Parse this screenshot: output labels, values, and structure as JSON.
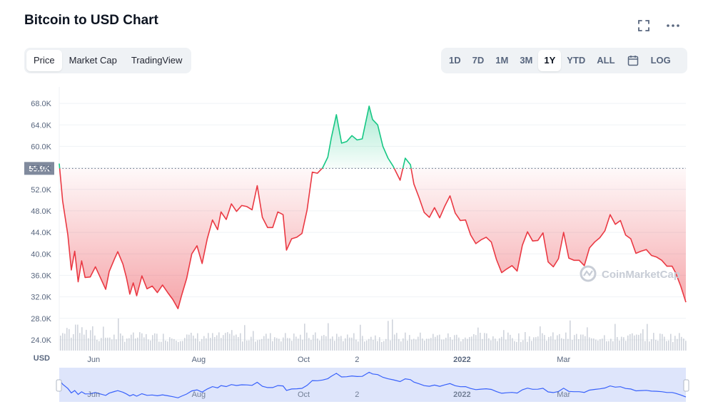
{
  "header": {
    "title": "Bitcoin to USD Chart",
    "expand_icon": "fullscreen-icon",
    "more_icon": "more-horizontal-icon"
  },
  "view_tabs": [
    {
      "label": "Price",
      "active": true
    },
    {
      "label": "Market Cap",
      "active": false
    },
    {
      "label": "TradingView",
      "active": false
    }
  ],
  "range_tabs": [
    {
      "label": "1D",
      "active": false
    },
    {
      "label": "7D",
      "active": false
    },
    {
      "label": "1M",
      "active": false
    },
    {
      "label": "3M",
      "active": false
    },
    {
      "label": "1Y",
      "active": true
    },
    {
      "label": "YTD",
      "active": false
    },
    {
      "label": "ALL",
      "active": false
    }
  ],
  "calendar_icon": "calendar-icon",
  "log_label": "LOG",
  "watermark": "CoinMarketCap",
  "colors": {
    "up": "#16c784",
    "down": "#ea3943",
    "navigator": "#3861fb",
    "grid": "#eff2f5",
    "axis_text": "#58667e"
  },
  "chart_data": {
    "type": "line",
    "title": "Bitcoin to USD Chart",
    "ylabel": "USD",
    "ylim": [
      22000,
      70000
    ],
    "yticks": [
      24000,
      28000,
      32000,
      36000,
      40000,
      44000,
      48000,
      52000,
      56000,
      60000,
      64000,
      68000
    ],
    "ytick_labels": [
      "24.0K",
      "28.0K",
      "32.0K",
      "36.0K",
      "40.0K",
      "44.0K",
      "48.0K",
      "52.0K",
      "56.0K",
      "60.0K",
      "64.0K",
      "68.0K"
    ],
    "xtick_labels": [
      {
        "label": "Jun",
        "x": "2021-06-01"
      },
      {
        "label": "Aug",
        "x": "2021-08-01"
      },
      {
        "label": "Oct",
        "x": "2021-10-01"
      },
      {
        "label": "2",
        "x": "2021-11-01"
      },
      {
        "label": "2022",
        "x": "2022-01-01"
      },
      {
        "label": "Mar",
        "x": "2022-03-01"
      }
    ],
    "x_range": [
      "2021-05-12",
      "2022-05-11"
    ],
    "baseline": 55900,
    "baseline_label": "55.9K",
    "grid": true,
    "has_volume_bars": true,
    "has_navigator": true,
    "series": [
      {
        "x": [
          "2021-05-12",
          "2021-05-14",
          "2021-05-17",
          "2021-05-19",
          "2021-05-21",
          "2021-05-23",
          "2021-05-25",
          "2021-05-27",
          "2021-05-30",
          "2021-06-02",
          "2021-06-05",
          "2021-06-08",
          "2021-06-10",
          "2021-06-13",
          "2021-06-15",
          "2021-06-18",
          "2021-06-20",
          "2021-06-22",
          "2021-06-24",
          "2021-06-26",
          "2021-06-29",
          "2021-07-02",
          "2021-07-05",
          "2021-07-08",
          "2021-07-11",
          "2021-07-14",
          "2021-07-17",
          "2021-07-20",
          "2021-07-22",
          "2021-07-25",
          "2021-07-28",
          "2021-07-31",
          "2021-08-03",
          "2021-08-06",
          "2021-08-09",
          "2021-08-12",
          "2021-08-14",
          "2021-08-17",
          "2021-08-20",
          "2021-08-23",
          "2021-08-26",
          "2021-08-29",
          "2021-09-01",
          "2021-09-04",
          "2021-09-07",
          "2021-09-10",
          "2021-09-13",
          "2021-09-16",
          "2021-09-19",
          "2021-09-21",
          "2021-09-24",
          "2021-09-27",
          "2021-09-30",
          "2021-10-03",
          "2021-10-06",
          "2021-10-09",
          "2021-10-12",
          "2021-10-15",
          "2021-10-17",
          "2021-10-20",
          "2021-10-23",
          "2021-10-26",
          "2021-10-29",
          "2021-11-01",
          "2021-11-04",
          "2021-11-08",
          "2021-11-10",
          "2021-11-13",
          "2021-11-16",
          "2021-11-19",
          "2021-11-22",
          "2021-11-26",
          "2021-11-29",
          "2021-12-02",
          "2021-12-04",
          "2021-12-07",
          "2021-12-10",
          "2021-12-13",
          "2021-12-16",
          "2021-12-19",
          "2021-12-22",
          "2021-12-25",
          "2021-12-28",
          "2021-12-31",
          "2022-01-03",
          "2022-01-06",
          "2022-01-09",
          "2022-01-12",
          "2022-01-15",
          "2022-01-18",
          "2022-01-21",
          "2022-01-24",
          "2022-01-27",
          "2022-01-30",
          "2022-02-02",
          "2022-02-05",
          "2022-02-08",
          "2022-02-11",
          "2022-02-14",
          "2022-02-17",
          "2022-02-20",
          "2022-02-23",
          "2022-02-26",
          "2022-03-01",
          "2022-03-04",
          "2022-03-07",
          "2022-03-10",
          "2022-03-13",
          "2022-03-16",
          "2022-03-19",
          "2022-03-22",
          "2022-03-25",
          "2022-03-28",
          "2022-03-31",
          "2022-04-03",
          "2022-04-06",
          "2022-04-09",
          "2022-04-12",
          "2022-04-15",
          "2022-04-18",
          "2022-04-21",
          "2022-04-24",
          "2022-04-27",
          "2022-04-30",
          "2022-05-03",
          "2022-05-05",
          "2022-05-08",
          "2022-05-11"
        ],
        "values": [
          56800,
          49800,
          43500,
          37000,
          40500,
          34800,
          38700,
          35600,
          35700,
          37600,
          35500,
          33400,
          36700,
          39000,
          40400,
          38100,
          35600,
          32500,
          34600,
          32200,
          35900,
          33500,
          34000,
          32800,
          34200,
          32800,
          31500,
          29800,
          32200,
          35400,
          40000,
          41500,
          38200,
          42800,
          46300,
          44500,
          47800,
          46400,
          49300,
          47900,
          49000,
          48800,
          48200,
          52700,
          46800,
          44900,
          44900,
          47800,
          47300,
          40700,
          42800,
          43100,
          43800,
          48200,
          55200,
          55000,
          56000,
          58000,
          61500,
          65900,
          60600,
          60900,
          62000,
          61200,
          61400,
          67500,
          65000,
          64000,
          60000,
          57800,
          56300,
          53700,
          57800,
          56600,
          53000,
          50500,
          47700,
          46800,
          48600,
          46700,
          48900,
          50800,
          47600,
          46200,
          46300,
          43500,
          41900,
          42600,
          43100,
          42200,
          38900,
          36500,
          37200,
          37800,
          36800,
          41600,
          44100,
          42400,
          42500,
          43900,
          38500,
          37600,
          39100,
          44000,
          39200,
          38800,
          38800,
          37800,
          41100,
          42200,
          43000,
          44300,
          47300,
          45500,
          46200,
          43500,
          42800,
          40100,
          40500,
          40800,
          39700,
          39400,
          38800,
          37700,
          37700,
          36500,
          34000,
          31000
        ]
      }
    ]
  }
}
